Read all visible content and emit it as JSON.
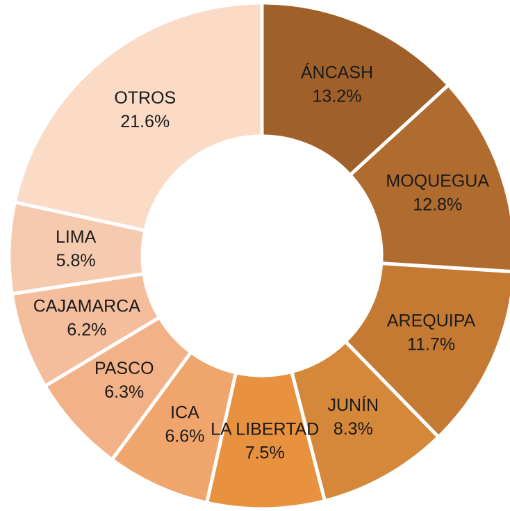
{
  "chart_data": {
    "type": "donut",
    "categories": [
      "ÁNCASH",
      "MOQUEGUA",
      "AREQUIPA",
      "JUNÍN",
      "LA LIBERTAD",
      "ICA",
      "PASCO",
      "CAJAMARCA",
      "LIMA",
      "OTROS"
    ],
    "values": [
      13.2,
      12.8,
      11.7,
      8.3,
      7.5,
      6.6,
      6.3,
      6.2,
      5.8,
      21.6
    ],
    "value_labels": [
      "13.2%",
      "12.8%",
      "11.7%",
      "8.3%",
      "7.5%",
      "6.6%",
      "6.3%",
      "6.2%",
      "5.8%",
      "21.6%"
    ],
    "colors": [
      "#a0602a",
      "#b06b2f",
      "#c47a33",
      "#d5883a",
      "#e8913f",
      "#f0a56c",
      "#f2b186",
      "#f4be9c",
      "#f6caae",
      "#fbdac6"
    ]
  }
}
